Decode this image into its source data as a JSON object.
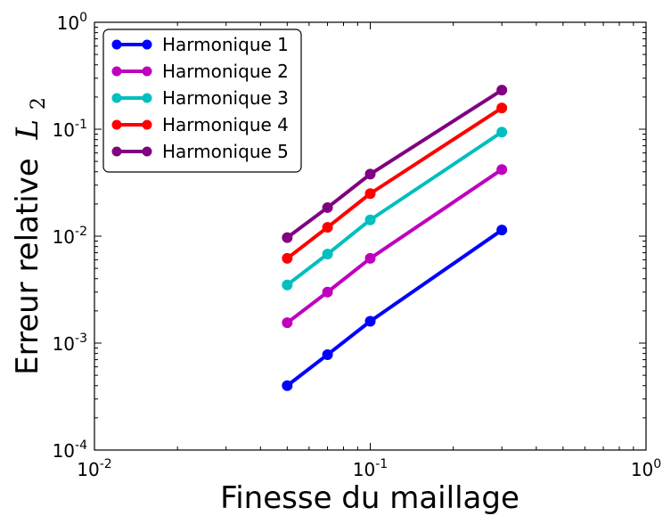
{
  "chart_data": {
    "type": "line",
    "xscale": "log",
    "yscale": "log",
    "xlim": [
      0.01,
      1
    ],
    "ylim": [
      0.0001,
      1
    ],
    "xticks": [
      {
        "base": "10",
        "exp": "-2"
      },
      {
        "base": "10",
        "exp": "-1"
      },
      {
        "base": "10",
        "exp": "0"
      }
    ],
    "yticks": [
      {
        "base": "10",
        "exp": "-4"
      },
      {
        "base": "10",
        "exp": "-3"
      },
      {
        "base": "10",
        "exp": "-2"
      },
      {
        "base": "10",
        "exp": "-1"
      },
      {
        "base": "10",
        "exp": "0"
      }
    ],
    "xlabel": "Finesse du maillage",
    "ylabel": "Erreur relative",
    "ylabel_math": "L",
    "ylabel_math_sub": "2",
    "legend_position": "top-left",
    "grid": false,
    "x": [
      0.05,
      0.07,
      0.1,
      0.3
    ],
    "series": [
      {
        "name": "Harmonique 1",
        "color": "#0000ff",
        "values": [
          0.0004,
          0.00078,
          0.0016,
          0.0114
        ]
      },
      {
        "name": "Harmonique 2",
        "color": "#bf00bf",
        "values": [
          0.00155,
          0.003,
          0.0062,
          0.042
        ]
      },
      {
        "name": "Harmonique 3",
        "color": "#00bfbf",
        "values": [
          0.0035,
          0.0068,
          0.0142,
          0.094
        ]
      },
      {
        "name": "Harmonique 4",
        "color": "#ff0000",
        "values": [
          0.0062,
          0.0121,
          0.025,
          0.158
        ]
      },
      {
        "name": "Harmonique 5",
        "color": "#800080",
        "values": [
          0.0097,
          0.0185,
          0.038,
          0.232
        ]
      }
    ]
  }
}
